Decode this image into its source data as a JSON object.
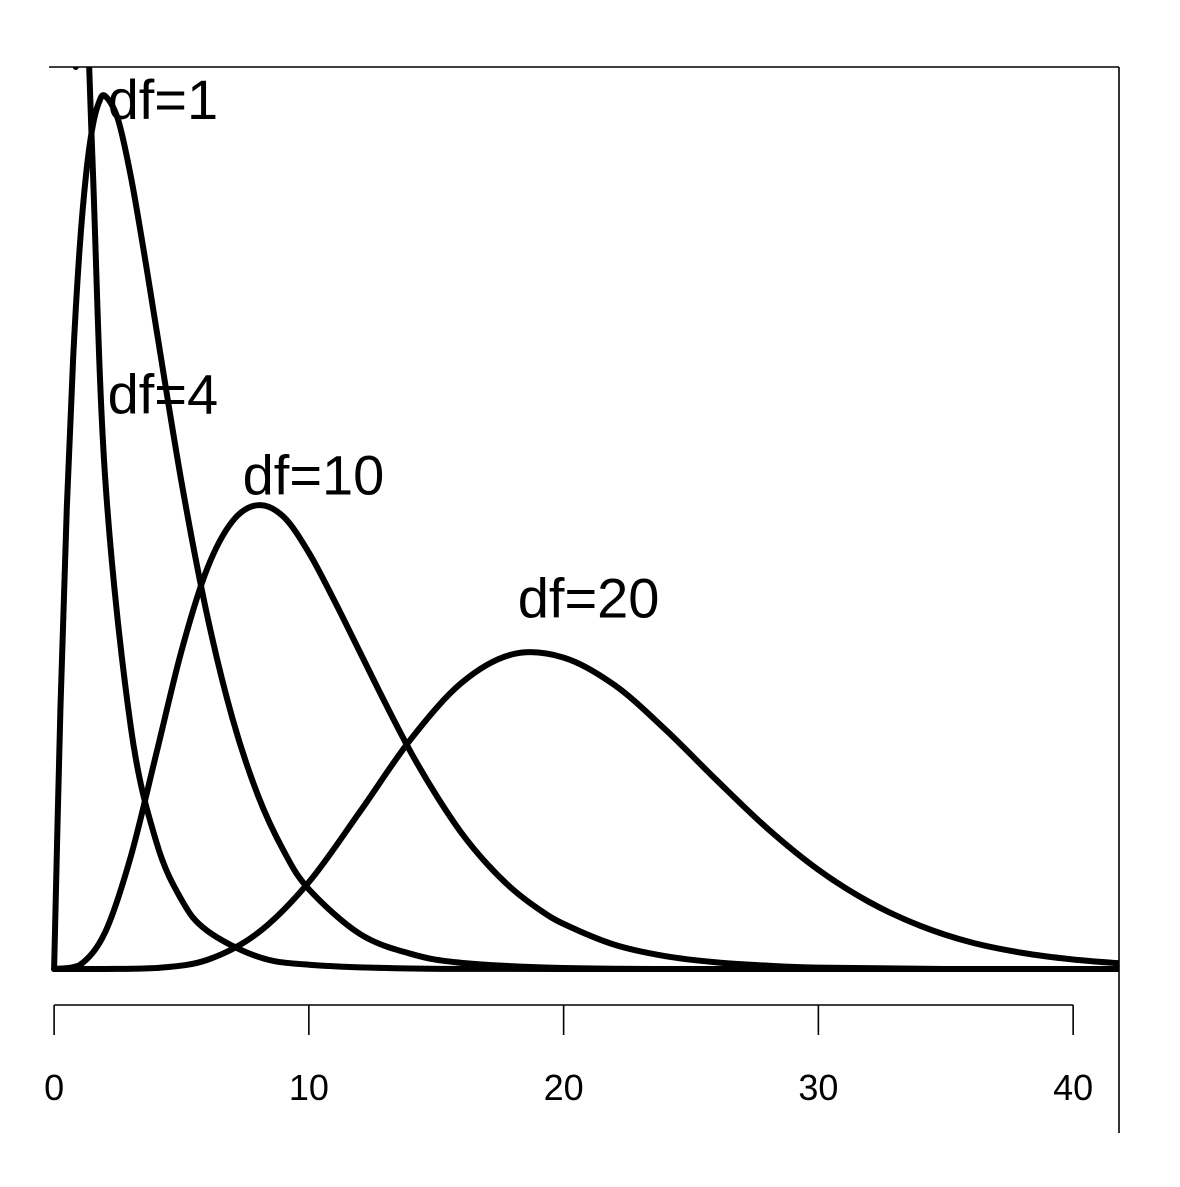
{
  "chart_data": {
    "type": "line",
    "title": "",
    "xlabel": "",
    "ylabel": "",
    "xlim": [
      -0.2,
      41.8
    ],
    "ylim": [
      0,
      0.19
    ],
    "grid": false,
    "legend": "none",
    "x_axis": {
      "ticks": [
        0,
        10,
        20,
        30,
        40
      ],
      "tick_labels": [
        "0",
        "10",
        "20",
        "30",
        "40"
      ]
    },
    "series": [
      {
        "name": "df=1",
        "label": "df=1",
        "label_x": 2.1,
        "label_y": 0.179,
        "points": [
          [
            0.85,
            0.19
          ],
          [
            1,
            0.242
          ],
          [
            1.5,
            0.1714
          ],
          [
            2,
            0.1038
          ],
          [
            3,
            0.0514
          ],
          [
            4,
            0.027
          ],
          [
            5,
            0.0146
          ],
          [
            6,
            0.0081
          ],
          [
            8,
            0.0026
          ],
          [
            10,
            0.0009
          ],
          [
            14,
            0.0001
          ],
          [
            20,
            0
          ],
          [
            41.8,
            0
          ]
        ]
      },
      {
        "name": "df=4",
        "label": "df=4",
        "label_x": 2.1,
        "label_y": 0.117,
        "points": [
          [
            0,
            0
          ],
          [
            0.25,
            0.0551
          ],
          [
            0.5,
            0.0973
          ],
          [
            0.75,
            0.1289
          ],
          [
            1,
            0.1516
          ],
          [
            1.25,
            0.1671
          ],
          [
            1.5,
            0.1771
          ],
          [
            1.75,
            0.1824
          ],
          [
            2,
            0.1839
          ],
          [
            2.5,
            0.1791
          ],
          [
            3,
            0.1673
          ],
          [
            3.5,
            0.1519
          ],
          [
            4,
            0.1353
          ],
          [
            5,
            0.1026
          ],
          [
            6,
            0.0747
          ],
          [
            7,
            0.0528
          ],
          [
            8,
            0.0366
          ],
          [
            9,
            0.025
          ],
          [
            10,
            0.0168
          ],
          [
            12,
            0.0074
          ],
          [
            14,
            0.0032
          ],
          [
            16,
            0.0013
          ],
          [
            20,
            0.0002
          ],
          [
            25,
            0
          ],
          [
            41.8,
            0
          ]
        ]
      },
      {
        "name": "df=10",
        "label": "df=10",
        "label_x": 7.4,
        "label_y": 0.1,
        "points": [
          [
            0,
            0
          ],
          [
            1,
            0.0008
          ],
          [
            2,
            0.0077
          ],
          [
            3,
            0.0235
          ],
          [
            4,
            0.0451
          ],
          [
            5,
            0.067
          ],
          [
            6,
            0.0842
          ],
          [
            7,
            0.0943
          ],
          [
            8,
            0.0977
          ],
          [
            9,
            0.0953
          ],
          [
            10,
            0.0877
          ],
          [
            11,
            0.0776
          ],
          [
            12,
            0.0668
          ],
          [
            13,
            0.056
          ],
          [
            14,
            0.0457
          ],
          [
            15,
            0.0366
          ],
          [
            16,
            0.0286
          ],
          [
            17,
            0.0221
          ],
          [
            18,
            0.0168
          ],
          [
            19,
            0.0127
          ],
          [
            20,
            0.0095
          ],
          [
            22,
            0.0051
          ],
          [
            24,
            0.0027
          ],
          [
            26,
            0.0014
          ],
          [
            28,
            0.0007
          ],
          [
            30,
            0.0003
          ],
          [
            35,
            0
          ],
          [
            41.8,
            0
          ]
        ]
      },
      {
        "name": "df=20",
        "label": "df=20",
        "label_x": 18.2,
        "label_y": 0.074,
        "points": [
          [
            0,
            0
          ],
          [
            2,
            0
          ],
          [
            4,
            0.0002
          ],
          [
            6,
            0.0019
          ],
          [
            8,
            0.0076
          ],
          [
            10,
            0.0183
          ],
          [
            12,
            0.0331
          ],
          [
            14,
            0.0484
          ],
          [
            16,
            0.0603
          ],
          [
            18,
            0.0663
          ],
          [
            20,
            0.0656
          ],
          [
            22,
            0.0598
          ],
          [
            24,
            0.0504
          ],
          [
            26,
            0.0398
          ],
          [
            28,
            0.0296
          ],
          [
            30,
            0.0209
          ],
          [
            32,
            0.0141
          ],
          [
            34,
            0.0091
          ],
          [
            36,
            0.0056
          ],
          [
            38,
            0.0034
          ],
          [
            40,
            0.002
          ],
          [
            41.8,
            0.0012
          ]
        ]
      }
    ]
  },
  "colors": {
    "ink": "#000000",
    "background": "#ffffff"
  }
}
